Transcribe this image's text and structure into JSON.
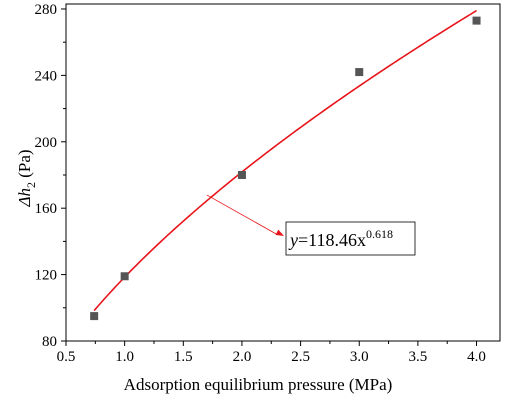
{
  "chart_data": {
    "type": "scatter",
    "xlabel": "Adsorption equilibrium pressure (MPa)",
    "ylabel": {
      "symbol": "Δh",
      "subscript": "2",
      "unit": "(Pa)"
    },
    "xlim": [
      0.5,
      4.2
    ],
    "ylim": [
      80,
      283
    ],
    "xticks": [
      0.5,
      1.0,
      1.5,
      2.0,
      2.5,
      3.0,
      3.5,
      4.0
    ],
    "xtick_labels": [
      "0.5",
      "1.0",
      "1.5",
      "2.0",
      "2.5",
      "3.0",
      "3.5",
      "4.0"
    ],
    "yticks": [
      80,
      120,
      160,
      200,
      240,
      280
    ],
    "ytick_labels": [
      "80",
      "120",
      "160",
      "200",
      "240",
      "280"
    ],
    "grid": false,
    "series": [
      {
        "kind": "points",
        "x": [
          0.74,
          1.0,
          2.0,
          3.0,
          4.0
        ],
        "y": [
          95,
          119,
          180,
          242,
          273
        ],
        "color": "#555555"
      },
      {
        "kind": "fit",
        "coefficient": 118.46,
        "exponent": 0.618,
        "x_range": [
          0.74,
          4.0
        ],
        "color": "#e8141a"
      }
    ],
    "annotation": {
      "prefix": "y",
      "body": "=118.46x",
      "superscript": "0.618",
      "arrow_target": [
        1.7,
        168
      ]
    }
  }
}
